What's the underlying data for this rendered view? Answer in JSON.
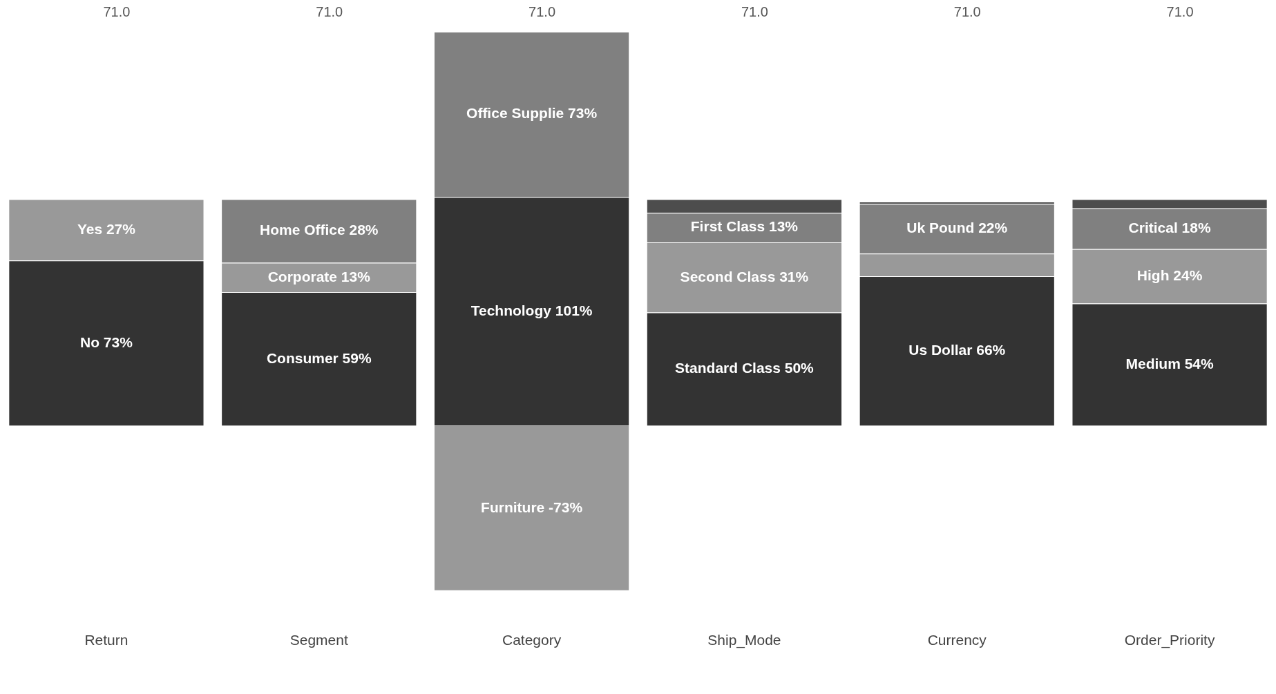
{
  "chart_data": {
    "type": "bar",
    "stacked": true,
    "categories": [
      "Return",
      "Segment",
      "Category",
      "Ship_Mode",
      "Currency",
      "Order_Priority"
    ],
    "series": [
      {
        "colors": [
          "#333333",
          "#333333",
          "#999999",
          "#333333",
          "#333333",
          "#333333"
        ],
        "values": [
          73,
          59,
          -73,
          50,
          66,
          54
        ],
        "value_labels": [
          "No 73%",
          "Consumer 59%",
          "Furniture -73%",
          "Standard Class 50%",
          "Us Dollar 66%",
          "Medium 54%"
        ]
      },
      {
        "colors": [
          "#999999",
          "#999999",
          "#333333",
          "#999999",
          "#999999",
          "#999999"
        ],
        "values": [
          27,
          13,
          101,
          31,
          10,
          24
        ],
        "value_labels": [
          "Yes 27%",
          "Corporate 13%",
          "Technology 101%",
          "Second Class 31%",
          null,
          "High 24%"
        ]
      },
      {
        "colors": [
          "#808080",
          "#808080",
          "#808080",
          "#808080",
          "#808080",
          "#808080"
        ],
        "values": [
          null,
          28,
          73,
          13,
          22,
          18
        ],
        "value_labels": [
          null,
          "Home Office 28%",
          "Office Supplie 73%",
          "First Class 13%",
          "Uk Pound 22%",
          "Critical 18%"
        ]
      },
      {
        "colors": [
          "#4d4d4d",
          "#4d4d4d",
          "#4d4d4d",
          "#4d4d4d",
          "#4d4d4d",
          "#4d4d4d"
        ],
        "values": [
          null,
          null,
          null,
          6,
          1,
          4
        ]
      }
    ],
    "annotations": [
      "71.0",
      "71.0",
      "71.0",
      "71.0",
      "71.0",
      "71.0"
    ],
    "grid": false,
    "legend": false
  }
}
